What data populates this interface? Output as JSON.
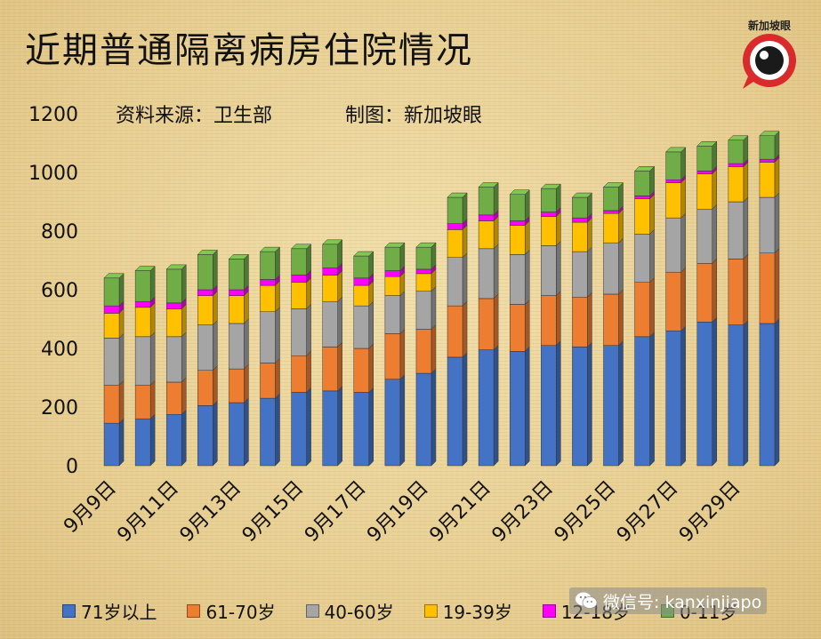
{
  "title": "近期普通隔离病房住院情况",
  "source_text": "资料来源：卫生部",
  "maker_text": "制图：新加坡眼",
  "logo_text": "新加坡眼",
  "logo_icon": "eye-speech-bubble-logo",
  "watermark": {
    "icon": "wechat-icon",
    "text": "微信号: kanxinjiapo"
  },
  "colors": {
    "71岁以上": "#4472c4",
    "61-70岁": "#ed7d31",
    "40-60岁": "#a5a5a5",
    "19-39岁": "#ffc000",
    "12-18岁": "#ff00ff",
    "0-11岁": "#70ad47"
  },
  "chart_data": {
    "type": "bar",
    "stacked": true,
    "title": "近期普通隔离病房住院情况",
    "xlabel": "",
    "ylabel": "",
    "ylim": [
      0,
      1200
    ],
    "yticks": [
      0,
      200,
      400,
      600,
      800,
      1000,
      1200
    ],
    "grid": false,
    "legend_position": "bottom",
    "categories": [
      "9月9日",
      "9月10日",
      "9月11日",
      "9月12日",
      "9月13日",
      "9月14日",
      "9月15日",
      "9月16日",
      "9月17日",
      "9月18日",
      "9月19日",
      "9月20日",
      "9月21日",
      "9月22日",
      "9月23日",
      "9月24日",
      "9月25日",
      "9月26日",
      "9月27日",
      "9月28日",
      "9月29日",
      "9月30日"
    ],
    "x_tick_labels": [
      "9月9日",
      "9月11日",
      "9月13日",
      "9月15日",
      "9月17日",
      "9月19日",
      "9月21日",
      "9月23日",
      "9月25日",
      "9月27日",
      "9月29日"
    ],
    "series": [
      {
        "name": "71岁以上",
        "values": [
          145,
          160,
          175,
          205,
          215,
          230,
          250,
          255,
          250,
          295,
          315,
          370,
          395,
          390,
          410,
          405,
          410,
          440,
          460,
          490,
          480,
          485
        ]
      },
      {
        "name": "61-70岁",
        "values": [
          130,
          115,
          110,
          120,
          115,
          120,
          125,
          150,
          150,
          155,
          150,
          175,
          175,
          160,
          170,
          170,
          175,
          185,
          200,
          200,
          225,
          240
        ]
      },
      {
        "name": "40-60岁",
        "values": [
          160,
          165,
          155,
          155,
          155,
          175,
          160,
          155,
          145,
          130,
          130,
          165,
          170,
          170,
          170,
          155,
          175,
          165,
          185,
          185,
          195,
          190
        ]
      },
      {
        "name": "19-39岁",
        "values": [
          85,
          100,
          95,
          100,
          95,
          90,
          90,
          90,
          70,
          65,
          60,
          95,
          95,
          100,
          100,
          100,
          100,
          120,
          120,
          120,
          120,
          120
        ]
      },
      {
        "name": "12-18岁",
        "values": [
          25,
          20,
          20,
          20,
          20,
          20,
          25,
          25,
          25,
          20,
          15,
          20,
          20,
          15,
          15,
          15,
          10,
          10,
          10,
          10,
          10,
          10
        ]
      },
      {
        "name": "0-11岁",
        "values": [
          95,
          105,
          115,
          120,
          105,
          95,
          90,
          80,
          75,
          80,
          75,
          90,
          95,
          90,
          80,
          70,
          80,
          85,
          95,
          85,
          80,
          80
        ]
      }
    ]
  }
}
